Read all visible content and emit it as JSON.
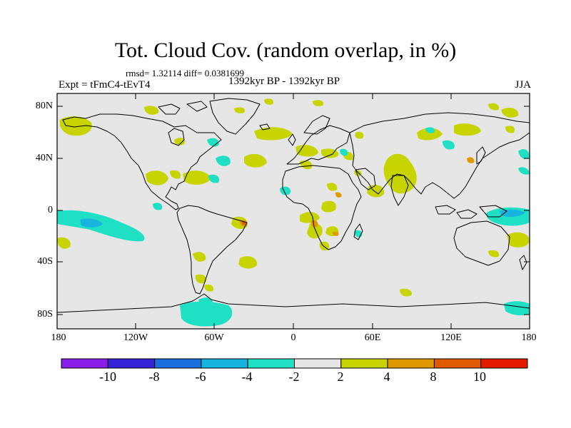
{
  "title": "Tot. Cloud Cov. (random overlap, in %)",
  "stats": "rmsd= 1.32114 diff= 0.0381699",
  "expt": "Expt = tFmC4-tEvT4",
  "period": "1392kyr BP - 1392kyr BP",
  "season": "JJA",
  "lat_labels": [
    "80N",
    "40N",
    "0",
    "40S",
    "80S"
  ],
  "lon_labels": [
    "180",
    "120W",
    "60W",
    "0",
    "60E",
    "120E",
    "180"
  ],
  "colorbar": {
    "labels": [
      "-10",
      "-8",
      "-6",
      "-4",
      "-2",
      "2",
      "4",
      "8",
      "10"
    ],
    "colors": [
      "#8a1de8",
      "#3322d6",
      "#1a6fdc",
      "#19b3e0",
      "#1fe0c4",
      "#e6e6e6",
      "#c8d400",
      "#e09a00",
      "#e05a00",
      "#e41a00"
    ]
  },
  "colors": {
    "ocean_bg": "#e6e6e6",
    "coast": "#000000",
    "pos2": "#c8d400",
    "neg2": "#1fe0c4",
    "neg4": "#19b3e0",
    "pos4": "#e09a00",
    "pos8": "#e05a00"
  }
}
